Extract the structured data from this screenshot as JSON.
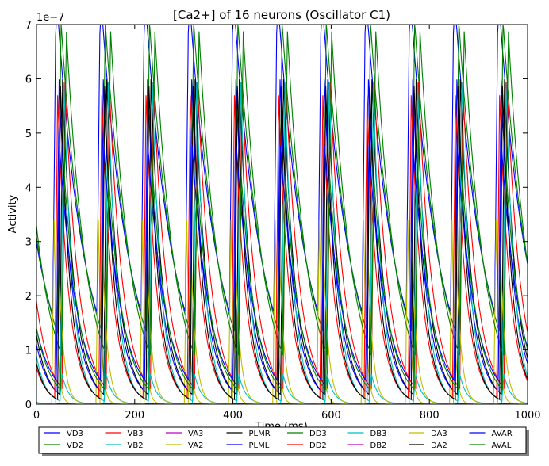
{
  "chart_data": {
    "type": "line",
    "title": "[Ca2+] of 16 neurons (Oscillator C1)",
    "xlabel": "Time (ms)",
    "ylabel": "Activity",
    "xlim": [
      0,
      1000
    ],
    "ylim": [
      0,
      7e-07
    ],
    "y_offset_text": "1e−7",
    "x_ticks": [
      0,
      200,
      400,
      600,
      800,
      1000
    ],
    "y_ticks": [
      0,
      1,
      2,
      3,
      4,
      5,
      6,
      7
    ],
    "y_tick_multiplier": 1e-07,
    "grid": false,
    "legend_placement": "bottom-center-outside",
    "legend_columns": 8,
    "period_ms": 90,
    "series": [
      {
        "name": "VD3",
        "color": "#0000ff",
        "first_peak_ms": 40,
        "peak": 6.2e-07,
        "rise_ms": 7,
        "decay_ms": 55
      },
      {
        "name": "VD2",
        "color": "#008000",
        "first_peak_ms": 50,
        "peak": 5.9e-07,
        "rise_ms": 7,
        "decay_ms": 50
      },
      {
        "name": "VB3",
        "color": "#ff0000",
        "first_peak_ms": 58,
        "peak": 5.7e-07,
        "rise_ms": 6,
        "decay_ms": 28
      },
      {
        "name": "VB2",
        "color": "#00bfbf",
        "first_peak_ms": 52,
        "peak": 5.5e-08,
        "rise_ms": 5,
        "decay_ms": 14
      },
      {
        "name": "VA3",
        "color": "#bf00bf",
        "first_peak_ms": 45,
        "peak": 2e-09,
        "rise_ms": 5,
        "decay_ms": 10
      },
      {
        "name": "VA2",
        "color": "#bfbf00",
        "first_peak_ms": 36,
        "peak": 3.4e-07,
        "rise_ms": 5,
        "decay_ms": 6
      },
      {
        "name": "PLMR",
        "color": "#000000",
        "first_peak_ms": 53,
        "peak": 5.85e-07,
        "rise_ms": 6,
        "decay_ms": 24
      },
      {
        "name": "PLML",
        "color": "#0000ff",
        "first_peak_ms": 46,
        "peak": 5.8e-07,
        "rise_ms": 6,
        "decay_ms": 26
      },
      {
        "name": "DD3",
        "color": "#008000",
        "first_peak_ms": 61,
        "peak": 6.15e-07,
        "rise_ms": 9,
        "decay_ms": 40
      },
      {
        "name": "DD2",
        "color": "#ff0000",
        "first_peak_ms": 43,
        "peak": 5.6e-07,
        "rise_ms": 6,
        "decay_ms": 22
      },
      {
        "name": "DB3",
        "color": "#00bfbf",
        "first_peak_ms": 56,
        "peak": 5.9e-07,
        "rise_ms": 8,
        "decay_ms": 18
      },
      {
        "name": "DB2",
        "color": "#bf00bf",
        "first_peak_ms": 48,
        "peak": 2e-09,
        "rise_ms": 5,
        "decay_ms": 10
      },
      {
        "name": "DA3",
        "color": "#bfbf00",
        "first_peak_ms": 44,
        "peak": 3e-07,
        "rise_ms": 5,
        "decay_ms": 10
      },
      {
        "name": "DA2",
        "color": "#000000",
        "first_peak_ms": 49,
        "peak": 5.8e-07,
        "rise_ms": 6,
        "decay_ms": 20
      },
      {
        "name": "AVAR",
        "color": "#0000ff",
        "first_peak_ms": 47,
        "peak": 4.4e-07,
        "rise_ms": 7,
        "decay_ms": 35
      },
      {
        "name": "AVAL",
        "color": "#008000",
        "first_peak_ms": 57,
        "peak": 4e-07,
        "rise_ms": 8,
        "decay_ms": 30
      }
    ]
  }
}
